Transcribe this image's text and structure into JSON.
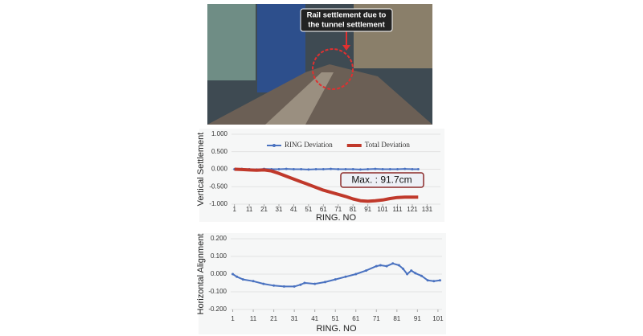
{
  "photo": {
    "annotation": [
      "Rail settlement due to",
      "the tunnel settlement"
    ]
  },
  "chart_data": [
    {
      "type": "line",
      "y_label": "Vertical Settlement",
      "x_label": "RING. NO",
      "annotation": "Max. : 91.7cm",
      "xlim": [
        -1,
        140
      ],
      "xticks": [
        1,
        11,
        21,
        31,
        41,
        51,
        61,
        71,
        81,
        91,
        101,
        111,
        121,
        131
      ],
      "ylim": [
        -1,
        1
      ],
      "yticks": [
        {
          "value": -1,
          "label": "-1.000"
        },
        {
          "value": -0.5,
          "label": "-0.500"
        },
        {
          "value": 0,
          "label": "0.000"
        },
        {
          "value": 0.5,
          "label": "0.500"
        },
        {
          "value": 1,
          "label": "1.000"
        }
      ],
      "grid": true,
      "legend": "top",
      "x": [
        1,
        6,
        11,
        16,
        21,
        26,
        31,
        36,
        41,
        46,
        51,
        56,
        61,
        66,
        71,
        76,
        81,
        86,
        91,
        96,
        101,
        106,
        111,
        116,
        121,
        125
      ],
      "series": [
        {
          "name": "RING Deviation",
          "color": "#4a72c0",
          "width": 2,
          "values": [
            0,
            0.01,
            0,
            -0.01,
            0.01,
            0,
            0,
            0.01,
            0,
            0,
            -0.01,
            0,
            0,
            0.01,
            0,
            0,
            0,
            -0.01,
            0,
            0.01,
            0,
            0,
            0,
            0.01,
            0,
            0
          ]
        },
        {
          "name": "Total Deviation",
          "color": "#c0392b",
          "width": 4,
          "values": [
            0,
            -0.01,
            -0.02,
            -0.03,
            -0.02,
            -0.05,
            -0.12,
            -0.2,
            -0.28,
            -0.36,
            -0.44,
            -0.52,
            -0.6,
            -0.66,
            -0.72,
            -0.78,
            -0.85,
            -0.9,
            -0.917,
            -0.9,
            -0.88,
            -0.84,
            -0.81,
            -0.8,
            -0.8,
            -0.8
          ]
        }
      ]
    },
    {
      "type": "line",
      "y_label": "Horizontal Alignment",
      "x_label": "RING. NO",
      "xlim": [
        0,
        103
      ],
      "xticks": [
        1,
        11,
        21,
        31,
        41,
        51,
        61,
        71,
        81,
        91,
        101
      ],
      "ylim": [
        -0.2,
        0.2
      ],
      "yticks": [
        {
          "value": -0.2,
          "label": "-0.200"
        },
        {
          "value": -0.1,
          "label": "-0.100"
        },
        {
          "value": 0,
          "label": "0.000"
        },
        {
          "value": 0.1,
          "label": "0.100"
        },
        {
          "value": 0.2,
          "label": "0.200"
        }
      ],
      "grid": true,
      "x": [
        1,
        3,
        6,
        11,
        16,
        21,
        26,
        31,
        34,
        36,
        41,
        46,
        51,
        56,
        61,
        66,
        71,
        73,
        76,
        79,
        82,
        84,
        86,
        88,
        90,
        93,
        96,
        99,
        102
      ],
      "series": [
        {
          "color": "#4a72c0",
          "width": 2,
          "values": [
            0,
            -0.015,
            -0.03,
            -0.04,
            -0.055,
            -0.065,
            -0.07,
            -0.07,
            -0.06,
            -0.05,
            -0.055,
            -0.045,
            -0.03,
            -0.015,
            0,
            0.02,
            0.045,
            0.05,
            0.045,
            0.06,
            0.05,
            0.03,
            0,
            0.02,
            0.005,
            -0.01,
            -0.035,
            -0.04,
            -0.035
          ]
        }
      ]
    }
  ]
}
